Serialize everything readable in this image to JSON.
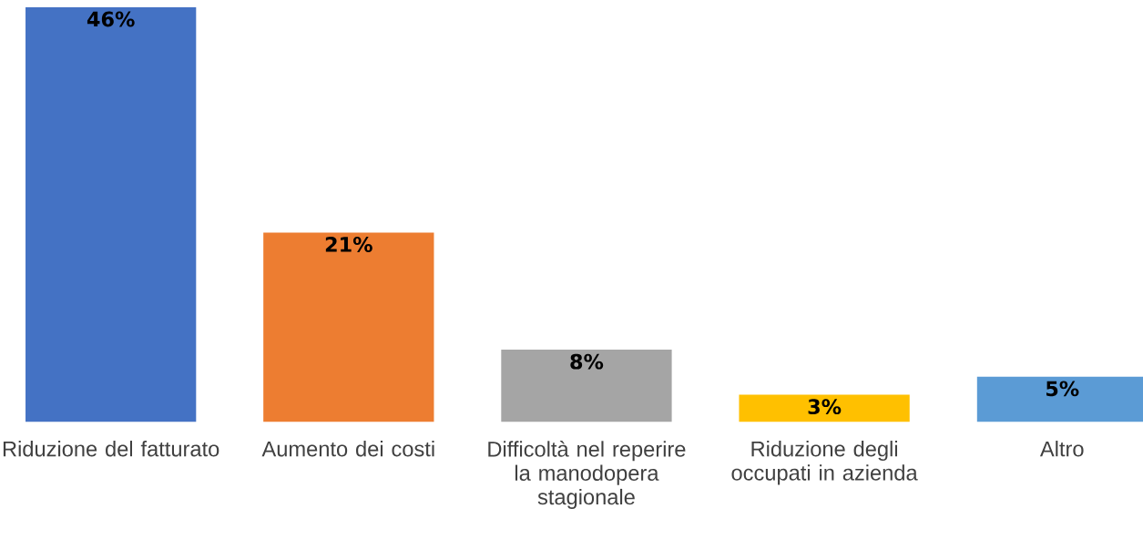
{
  "chart_data": {
    "type": "bar",
    "categories": [
      "Riduzione del fatturato",
      "Aumento dei costi",
      "Difficoltà nel reperire la manodopera stagionale",
      "Riduzione degli occupati in azienda",
      "Altro"
    ],
    "values": [
      46,
      21,
      8,
      3,
      5
    ],
    "colors": [
      "#4472c4",
      "#ed7d31",
      "#a5a5a5",
      "#ffc000",
      "#5b9bd5"
    ],
    "value_labels": [
      "46%",
      "21%",
      "8%",
      "3%",
      "5%"
    ]
  }
}
